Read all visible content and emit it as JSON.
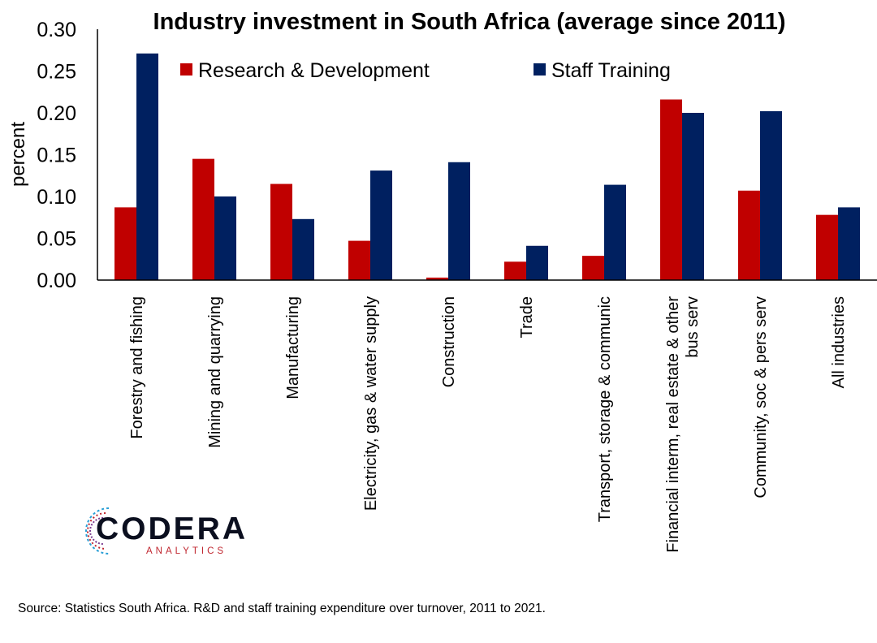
{
  "chart_data": {
    "type": "bar",
    "title": "Industry investment in South Africa (average since 2011)",
    "ylabel": "percent",
    "xlabel": "",
    "ylim": [
      0,
      0.3
    ],
    "yticks": [
      "0.00",
      "0.05",
      "0.10",
      "0.15",
      "0.20",
      "0.25",
      "0.30"
    ],
    "legend_position": "top",
    "categories": [
      [
        "Forestry and fishing"
      ],
      [
        "Mining and quarrying"
      ],
      [
        "Manufacturing"
      ],
      [
        "Electricity, gas & water supply"
      ],
      [
        "Construction"
      ],
      [
        "Trade"
      ],
      [
        "Transport, storage & communic"
      ],
      [
        "Financial interm, real estate & other",
        "bus serv"
      ],
      [
        "Community, soc & pers serv"
      ],
      [
        "All industries"
      ]
    ],
    "series": [
      {
        "name": "Research & Development",
        "color": "#c00000",
        "values": [
          0.087,
          0.145,
          0.115,
          0.047,
          0.003,
          0.022,
          0.029,
          0.216,
          0.107,
          0.078
        ]
      },
      {
        "name": "Staff Training",
        "color": "#002060",
        "values": [
          0.271,
          0.1,
          0.073,
          0.131,
          0.141,
          0.041,
          0.114,
          0.2,
          0.202,
          0.087
        ]
      }
    ]
  },
  "source": "Source: Statistics South Africa. R&D and staff training expenditure over turnover, 2011 to 2021.",
  "logo": {
    "word": "CODERA",
    "sub": "ANALYTICS"
  }
}
